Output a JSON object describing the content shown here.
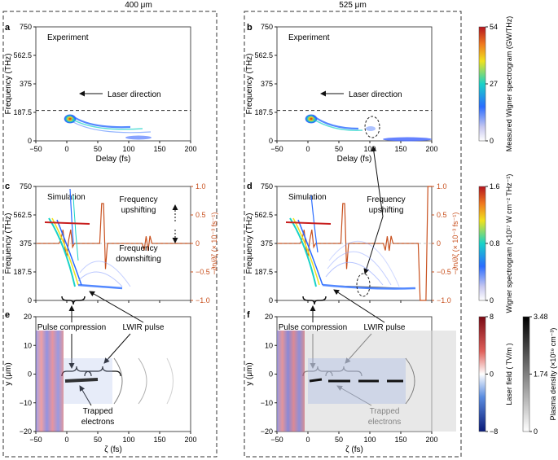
{
  "figure": {
    "col_titles": [
      "400 μm",
      "525 μm"
    ]
  },
  "chart_data": [
    {
      "panel": "a",
      "type": "heatmap",
      "label": "Experiment",
      "xlabel": "Delay (fs)",
      "ylabel": "Frequency (THz)",
      "xlim": [
        -50,
        200
      ],
      "ylim": [
        0,
        750
      ],
      "xticks": [
        "−50",
        "0",
        "50",
        "100",
        "150",
        "200"
      ],
      "yticks": [
        "0",
        "187.5",
        "375",
        "562.5",
        "750"
      ],
      "annotations": [
        "Laser direction"
      ],
      "dashed_line_y": 200,
      "colorbar": "Measured Wigner spectrogram (GW/THz)"
    },
    {
      "panel": "b",
      "type": "heatmap",
      "label": "Experiment",
      "xlabel": "Delay (fs)",
      "ylabel": "Frequency (THz)",
      "xlim": [
        -50,
        200
      ],
      "ylim": [
        0,
        750
      ],
      "xticks": [
        "−50",
        "0",
        "50",
        "100",
        "150",
        "200"
      ],
      "yticks": [
        "0",
        "187.5",
        "375",
        "562.5",
        "750"
      ],
      "annotations": [
        "Laser direction"
      ],
      "dashed_line_y": 200
    },
    {
      "panel": "c",
      "type": "heatmap",
      "label": "Simulation",
      "xlabel": "",
      "ylabel": "Frequency (THz)",
      "y2label": "−∂n/∂ζ (× 10⁻³ fs⁻¹)",
      "xlim": [
        -50,
        200
      ],
      "ylim": [
        0,
        750
      ],
      "y2lim": [
        -1,
        1
      ],
      "yticks": [
        "0",
        "187.5",
        "375",
        "562.5",
        "750"
      ],
      "y2ticks": [
        "1.0",
        "0.5",
        "0",
        "−0.5",
        "−1.0"
      ],
      "annotations": [
        "Frequency",
        "upshifting",
        "Frequency",
        "downshifting"
      ],
      "colorbar": "Wigner spectrogram"
    },
    {
      "panel": "d",
      "type": "heatmap",
      "label": "Simulation",
      "xlabel": "",
      "ylabel": "Frequency (THz)",
      "y2label": "−∂n/∂ζ (× 10⁻³ fs⁻¹)",
      "xlim": [
        -50,
        200
      ],
      "ylim": [
        0,
        750
      ],
      "y2lim": [
        -1,
        1
      ],
      "yticks": [
        "0",
        "187.5",
        "375",
        "562.5",
        "750"
      ],
      "y2ticks": [
        "1.0",
        "0.5",
        "0",
        "−0.5",
        "−1.0"
      ],
      "annotations": [
        "Frequency",
        "upshifting"
      ]
    },
    {
      "panel": "e",
      "type": "heatmap",
      "xlabel": "ζ (fs)",
      "ylabel": "y (μm)",
      "xlim": [
        -50,
        200
      ],
      "ylim": [
        -20,
        20
      ],
      "xticks": [
        "−50",
        "0",
        "50",
        "100",
        "150",
        "200"
      ],
      "yticks": [
        "20",
        "10",
        "0",
        "−10",
        "−20"
      ],
      "annotations": [
        "Pulse compression",
        "LWIR pulse",
        "Trapped",
        "electrons"
      ]
    },
    {
      "panel": "f",
      "type": "heatmap",
      "xlabel": "ζ (fs)",
      "ylabel": "y (μm)",
      "xlim": [
        -50,
        200
      ],
      "ylim": [
        -20,
        20
      ],
      "xticks": [
        "−50",
        "0",
        "50",
        "100",
        "150",
        "200"
      ],
      "yticks": [
        "20",
        "10",
        "0",
        "−10",
        "−20"
      ],
      "annotations": [
        "Pulse compression",
        "LWIR pulse",
        "Trapped",
        "electrons"
      ]
    }
  ],
  "colorbars": [
    {
      "name": "measured",
      "label": "Measured Wigner spectrogram (GW/THz)",
      "ticks": [
        "54",
        "27",
        "0"
      ],
      "range": [
        0,
        54
      ]
    },
    {
      "name": "wigner",
      "label": "Wigner spectrogram (×10¹⁷ W cm⁻² THz⁻¹)",
      "ticks": [
        "1.6",
        "0.8",
        "0"
      ],
      "range": [
        0,
        1.6
      ]
    },
    {
      "name": "laser",
      "label": "Laser field ( TV/m )",
      "ticks": [
        "8",
        "0",
        "−8"
      ],
      "range": [
        -8,
        8
      ]
    },
    {
      "name": "plasma",
      "label": "Plasma density (×10¹⁹ cm⁻³)",
      "ticks": [
        "3.48",
        "1.74",
        "0"
      ],
      "range": [
        0,
        3.48
      ]
    }
  ],
  "colors": {
    "axis": "#222222",
    "derivative_line": "#c8501e",
    "dashed_box": "#333333"
  }
}
